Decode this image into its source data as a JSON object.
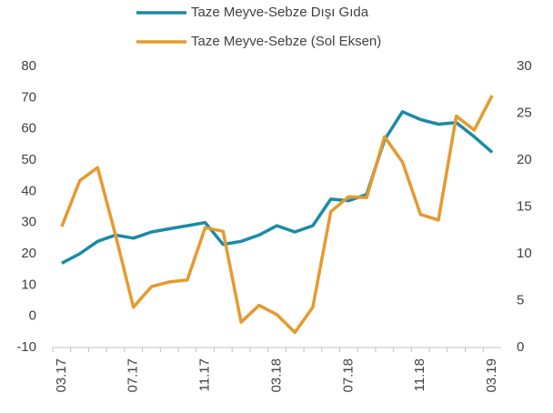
{
  "chart_data": {
    "type": "line",
    "categories": [
      "03.17",
      null,
      null,
      null,
      "07.17",
      null,
      null,
      null,
      "11.17",
      null,
      null,
      null,
      "03.18",
      null,
      null,
      null,
      "07.18",
      null,
      null,
      null,
      "11.18",
      null,
      null,
      null,
      "03.19"
    ],
    "series": [
      {
        "name": "Taze Meyve-Sebze Dışı Gıda",
        "color": "#1a8aa8",
        "axis": "y",
        "values": [
          17,
          20,
          24,
          26,
          25,
          27,
          28,
          29,
          30,
          23,
          24,
          26,
          29,
          27,
          29,
          37.5,
          37,
          39,
          56.5,
          65.5,
          63,
          61.5,
          62,
          57.5,
          52.5
        ]
      },
      {
        "name": "Taze Meyve-Sebze (Sol Eksen)",
        "color": "#e59a2f",
        "axis": "y2",
        "values": [
          12.9,
          17.8,
          19.2,
          12,
          4.3,
          6.5,
          7,
          7.2,
          12.8,
          12.4,
          2.7,
          4.5,
          3.5,
          1.6,
          4.3,
          14.5,
          16.1,
          16,
          22.5,
          19.8,
          14.2,
          13.6,
          24.7,
          23.2,
          26.9
        ]
      }
    ],
    "ylim": [
      -10,
      80
    ],
    "yticks": [
      -10,
      0,
      10,
      20,
      30,
      40,
      50,
      60,
      70,
      80
    ],
    "y2lim": [
      0,
      30
    ],
    "y2ticks": [
      0,
      5,
      10,
      15,
      20,
      25,
      30
    ],
    "legend": "top",
    "grid": false
  }
}
